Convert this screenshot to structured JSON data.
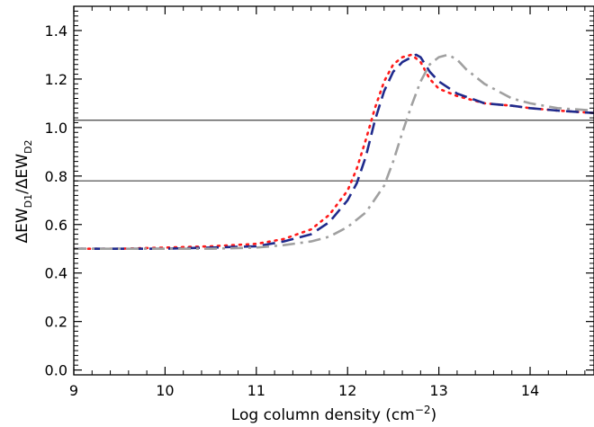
{
  "chart_data": {
    "type": "line",
    "xlabel": {
      "main": "Log column density (cm",
      "sup": "−2",
      "end": ")"
    },
    "ylabel": {
      "p1": "ΔEW",
      "s1": "D1",
      "p2": "/ΔEW",
      "s2": "D2"
    },
    "xlim": [
      9,
      14.7
    ],
    "ylim": [
      -0.02,
      1.5
    ],
    "x_ticks": [
      9,
      10,
      11,
      12,
      13,
      14
    ],
    "x_tick_labels": [
      "9",
      "10",
      "11",
      "12",
      "13",
      "14"
    ],
    "y_ticks": [
      0.0,
      0.2,
      0.4,
      0.6,
      0.8,
      1.0,
      1.2,
      1.4
    ],
    "y_tick_labels": [
      "0.0",
      "0.2",
      "0.4",
      "0.6",
      "0.8",
      "1.0",
      "1.2",
      "1.4"
    ],
    "hlines": [
      1.03,
      0.78
    ],
    "series": [
      {
        "color": "#ff1a1a",
        "style": "dotted",
        "x": [
          9.0,
          9.5,
          10.0,
          10.5,
          11.0,
          11.3,
          11.6,
          11.8,
          12.0,
          12.1,
          12.2,
          12.3,
          12.4,
          12.5,
          12.6,
          12.7,
          12.8,
          12.9,
          13.0,
          13.2,
          13.5,
          13.8,
          14.0,
          14.3,
          14.7
        ],
        "y": [
          0.5,
          0.5,
          0.505,
          0.51,
          0.52,
          0.54,
          0.58,
          0.64,
          0.74,
          0.83,
          0.95,
          1.08,
          1.19,
          1.26,
          1.29,
          1.3,
          1.27,
          1.2,
          1.16,
          1.13,
          1.1,
          1.09,
          1.08,
          1.07,
          1.06
        ]
      },
      {
        "color": "#1f2a8c",
        "style": "dashed",
        "x": [
          9.0,
          9.5,
          10.0,
          10.5,
          11.0,
          11.3,
          11.6,
          11.8,
          12.0,
          12.1,
          12.2,
          12.3,
          12.4,
          12.5,
          12.6,
          12.7,
          12.75,
          12.8,
          12.9,
          13.0,
          13.2,
          13.5,
          13.8,
          14.0,
          14.3,
          14.7
        ],
        "y": [
          0.5,
          0.5,
          0.5,
          0.505,
          0.51,
          0.53,
          0.56,
          0.61,
          0.7,
          0.77,
          0.88,
          1.03,
          1.15,
          1.23,
          1.27,
          1.29,
          1.3,
          1.29,
          1.23,
          1.19,
          1.14,
          1.1,
          1.09,
          1.08,
          1.07,
          1.06
        ]
      },
      {
        "color": "#a0a0a0",
        "style": "dashdot",
        "x": [
          9.0,
          9.5,
          10.0,
          10.5,
          11.0,
          11.3,
          11.6,
          11.8,
          12.0,
          12.2,
          12.4,
          12.5,
          12.6,
          12.7,
          12.8,
          12.9,
          13.0,
          13.1,
          13.2,
          13.3,
          13.5,
          13.8,
          14.0,
          14.3,
          14.7
        ],
        "y": [
          0.5,
          0.5,
          0.5,
          0.5,
          0.505,
          0.515,
          0.53,
          0.55,
          0.59,
          0.65,
          0.76,
          0.86,
          0.98,
          1.09,
          1.19,
          1.26,
          1.29,
          1.3,
          1.28,
          1.24,
          1.18,
          1.12,
          1.1,
          1.08,
          1.07
        ]
      }
    ]
  }
}
